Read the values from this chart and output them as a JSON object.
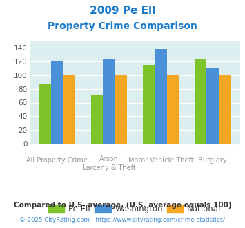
{
  "title_line1": "2009 Pe Ell",
  "title_line2": "Property Crime Comparison",
  "x_labels_top": [
    "",
    "Arson",
    "Motor Vehicle Theft",
    ""
  ],
  "x_labels_bottom": [
    "All Property Crime",
    "Larceny & Theft",
    "",
    "Burglary"
  ],
  "series": {
    "Pe Ell": [
      87,
      71,
      115,
      124
    ],
    "Washington": [
      121,
      123,
      138,
      111
    ],
    "National": [
      100,
      100,
      100,
      100
    ]
  },
  "colors": {
    "Pe Ell": "#7dc42a",
    "Washington": "#4a90d9",
    "National": "#f5a623"
  },
  "ylim": [
    0,
    150
  ],
  "yticks": [
    0,
    20,
    40,
    60,
    80,
    100,
    120,
    140
  ],
  "background_color": "#ddeef0",
  "title_color": "#1a7acc",
  "xlabel_color": "#999999",
  "footnote1": "Compared to U.S. average. (U.S. average equals 100)",
  "footnote2": "© 2025 CityRating.com - https://www.cityrating.com/crime-statistics/",
  "footnote1_color": "#333333",
  "footnote2_color": "#4a90d9"
}
